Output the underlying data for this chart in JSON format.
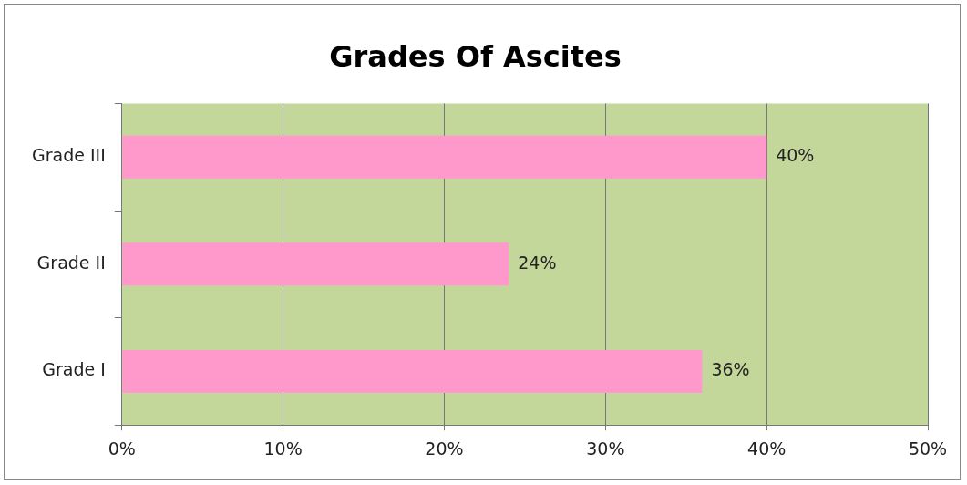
{
  "chart_data": {
    "type": "bar",
    "orientation": "horizontal",
    "title": "Grades Of Ascites",
    "categories": [
      "Grade III",
      "Grade II",
      "Grade I"
    ],
    "values": [
      40,
      24,
      36
    ],
    "value_labels": [
      "40%",
      "24%",
      "36%"
    ],
    "color": "#ff99cc",
    "xlim": [
      0,
      50
    ],
    "xticks": [
      {
        "value": 0,
        "label": "0%"
      },
      {
        "value": 10,
        "label": "10%"
      },
      {
        "value": 20,
        "label": "20%"
      },
      {
        "value": 30,
        "label": "30%"
      },
      {
        "value": 40,
        "label": "40%"
      },
      {
        "value": 50,
        "label": "50%"
      }
    ],
    "grid": "x",
    "legend": false
  }
}
